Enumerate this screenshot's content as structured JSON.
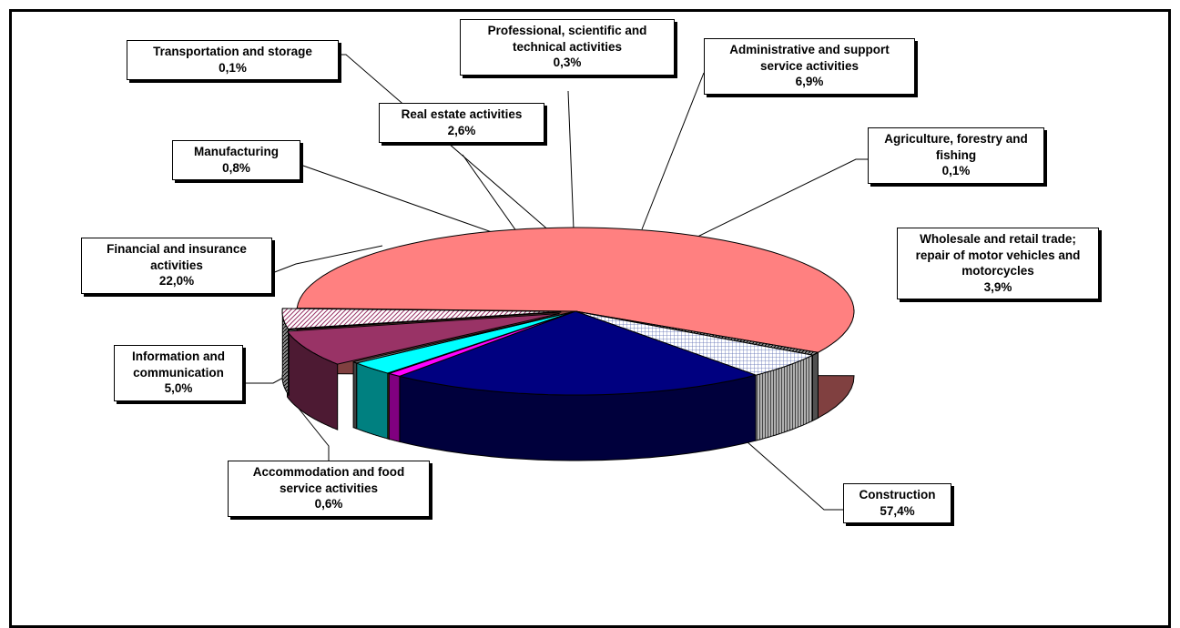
{
  "chart_data": {
    "type": "pie",
    "title": "",
    "slices": [
      {
        "label": "Construction",
        "value": 57.4,
        "value_label": "57,4%",
        "color": "#ff8080",
        "side_color": "#804040"
      },
      {
        "label": "Accommodation and food service activities",
        "value": 0.6,
        "value_label": "0,6%",
        "color": "#969696",
        "side_color": "#4a4a4a"
      },
      {
        "label": "Information and communication",
        "value": 5.0,
        "value_label": "5,0%",
        "color": "#ccd6ff",
        "side_color": "#3c3c3c"
      },
      {
        "label": "Financial and insurance activities",
        "value": 22.0,
        "value_label": "22,0%",
        "color": "#000080",
        "side_color": "#00003c"
      },
      {
        "label": "Manufacturing",
        "value": 0.8,
        "value_label": "0,8%",
        "color": "#ff00ff",
        "side_color": "#800080"
      },
      {
        "label": "Transportation and storage",
        "value": 0.1,
        "value_label": "0,1%",
        "color": "#ffff00",
        "side_color": "#808000"
      },
      {
        "label": "Real estate activities",
        "value": 2.6,
        "value_label": "2,6%",
        "color": "#00ffff",
        "side_color": "#008080"
      },
      {
        "label": "Professional, scientific and technical activities",
        "value": 0.3,
        "value_label": "0,3%",
        "color": "#7f7f7f",
        "side_color": "#404040"
      },
      {
        "label": "Administrative and support service activities",
        "value": 6.9,
        "value_label": "6,9%",
        "color": "#993366",
        "side_color": "#4d1a33"
      },
      {
        "label": "Agriculture, forestry and fishing",
        "value": 0.1,
        "value_label": "0,1%",
        "color": "#ccffff",
        "side_color": "#668080"
      },
      {
        "label": "Wholesale and retail trade; repair of motor vehicles and motorcycles",
        "value": 3.9,
        "value_label": "3,9%",
        "color": "#e8c8e8",
        "side_color": "#6e6e6e"
      }
    ],
    "legend": "none",
    "data_labels": "callouts"
  },
  "labels": {
    "construction": {
      "l1": "Construction",
      "l2": "",
      "l3": "",
      "pct": "57,4%"
    },
    "accommodation": {
      "l1": "Accommodation and food",
      "l2": "service activities",
      "l3": "",
      "pct": "0,6%"
    },
    "information": {
      "l1": "Information and",
      "l2": "communication",
      "l3": "",
      "pct": "5,0%"
    },
    "financial": {
      "l1": "Financial and insurance",
      "l2": "activities",
      "l3": "",
      "pct": "22,0%"
    },
    "manufacturing": {
      "l1": "Manufacturing",
      "l2": "",
      "l3": "",
      "pct": "0,8%"
    },
    "transportation": {
      "l1": "Transportation and storage",
      "l2": "",
      "l3": "",
      "pct": "0,1%"
    },
    "realestate": {
      "l1": "Real estate activities",
      "l2": "",
      "l3": "",
      "pct": "2,6%"
    },
    "professional": {
      "l1": "Professional, scientific and",
      "l2": "technical activities",
      "l3": "",
      "pct": "0,3%"
    },
    "administrative": {
      "l1": "Administrative and support",
      "l2": "service activities",
      "l3": "",
      "pct": "6,9%"
    },
    "agriculture": {
      "l1": "Agriculture, forestry and",
      "l2": "fishing",
      "l3": "",
      "pct": "0,1%"
    },
    "wholesale": {
      "l1": "Wholesale and retail trade;",
      "l2": "repair of motor vehicles and",
      "l3": "motorcycles",
      "pct": "3,9%"
    }
  }
}
